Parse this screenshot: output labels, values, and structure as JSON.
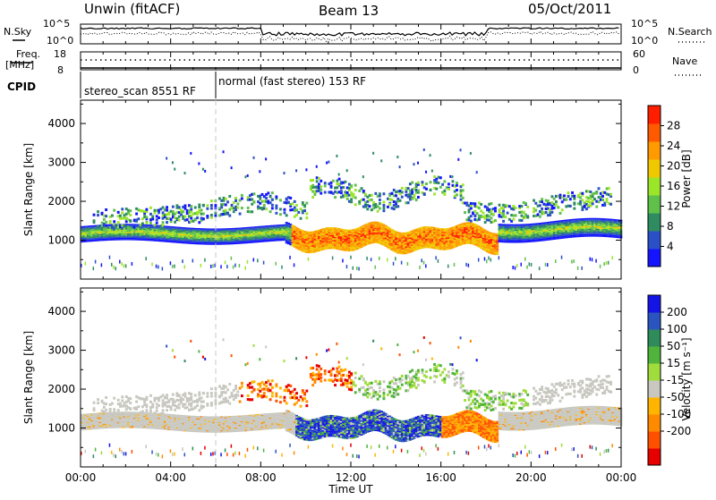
{
  "header": {
    "station": "Unwin (fitACF)",
    "beam": "Beam 13",
    "date": "05/Oct/2011"
  },
  "side_labels": {
    "nsky": "N.Sky",
    "nsearch": "N.Search",
    "freq_line1": "Freq.",
    "freq_line2": "[MHz]",
    "nave": "Nave",
    "cpid": "CPID"
  },
  "strip_ticks": {
    "noise_left": [
      "10^5",
      "10^0"
    ],
    "noise_right": [
      "10^5",
      "10^0"
    ],
    "freq_left": [
      "18",
      "8"
    ],
    "nave_right": [
      "60",
      "0"
    ]
  },
  "cpid_segments": [
    {
      "label": "stereo_scan 8551 RF",
      "start_hour": 0,
      "end_hour": 6
    },
    {
      "label": "normal (fast stereo) 153 RF",
      "start_hour": 6,
      "end_hour": 24
    }
  ],
  "colors": {
    "power_scale": [
      "#1414ff",
      "#2a50c8",
      "#2f8c60",
      "#5fc04a",
      "#9ce62a",
      "#f0c800",
      "#ff9a00",
      "#ff5a00",
      "#ff1e00"
    ],
    "velocity_scale": [
      "#1414e6",
      "#2a55c0",
      "#2f8c5a",
      "#50b43c",
      "#a0dc3c",
      "#c8c8c0",
      "#ffb400",
      "#ff8a00",
      "#ff5000",
      "#e60000"
    ],
    "ground_scatter": "#c8c8c0"
  },
  "chart_data": [
    {
      "type": "heatmap",
      "panel": "power",
      "title": "",
      "xlabel": "",
      "ylabel": "Slant Range [km]",
      "xlim": [
        "00:00",
        "24:00"
      ],
      "ylim": [
        0,
        4600
      ],
      "y_ticks": [
        "1000",
        "2000",
        "3000",
        "4000"
      ],
      "colorbar": {
        "label": "Power [dB]",
        "ticks": [
          "4",
          "8",
          "12",
          "16",
          "20",
          "24",
          "28"
        ],
        "range": [
          0,
          32
        ]
      }
    },
    {
      "type": "heatmap",
      "panel": "velocity",
      "title": "",
      "xlabel": "Time UT",
      "ylabel": "Slant Range [km]",
      "xlim": [
        "00:00",
        "24:00"
      ],
      "ylim": [
        0,
        4600
      ],
      "y_ticks": [
        "1000",
        "2000",
        "3000",
        "4000"
      ],
      "x_ticks": [
        "00:00",
        "04:00",
        "08:00",
        "12:00",
        "16:00",
        "20:00",
        "00:00"
      ],
      "colorbar": {
        "label": "Velocity [m s⁻¹]",
        "ticks": [
          "200",
          "100",
          "50",
          "15",
          "-15",
          "-50",
          "-100",
          "-200"
        ],
        "range": [
          -250,
          250
        ]
      }
    }
  ]
}
